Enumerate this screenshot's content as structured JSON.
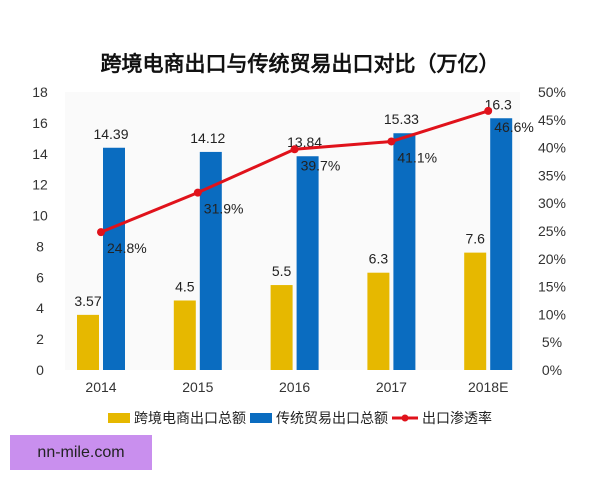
{
  "chart_data": {
    "type": "bar",
    "title": "跨境电商出口与传统贸易出口对比（万亿）",
    "categories": [
      "2014",
      "2015",
      "2016",
      "2017",
      "2018E"
    ],
    "series": [
      {
        "name": "跨境电商出口总额",
        "type": "bar",
        "axis": "left",
        "color": "#e6b800",
        "values": [
          3.57,
          4.5,
          5.5,
          6.3,
          7.6
        ],
        "labels": [
          "3.57",
          "4.5",
          "5.5",
          "6.3",
          "7.6"
        ]
      },
      {
        "name": "传统贸易出口总额",
        "type": "bar",
        "axis": "left",
        "color": "#0a6cc0",
        "values": [
          14.39,
          14.12,
          13.84,
          15.33,
          16.3
        ],
        "labels": [
          "14.39",
          "14.12",
          "13.84",
          "15.33",
          "16.3"
        ]
      },
      {
        "name": "出口渗透率",
        "type": "line",
        "axis": "right",
        "color": "#e0121b",
        "values": [
          24.8,
          31.9,
          39.7,
          41.1,
          46.6
        ],
        "labels": [
          "24.8%",
          "31.9%",
          "39.7%",
          "41.1%",
          "46.6%"
        ]
      }
    ],
    "ylim": [
      0,
      18
    ],
    "yticks": [
      "0",
      "2",
      "4",
      "6",
      "8",
      "10",
      "12",
      "14",
      "16",
      "18"
    ],
    "y2lim": [
      0,
      50
    ],
    "y2ticks": [
      "0%",
      "5%",
      "10%",
      "15%",
      "20%",
      "25%",
      "30%",
      "35%",
      "40%",
      "45%",
      "50%"
    ],
    "grid": false,
    "legend": "bottom"
  },
  "watermark": "nn-mile.com"
}
